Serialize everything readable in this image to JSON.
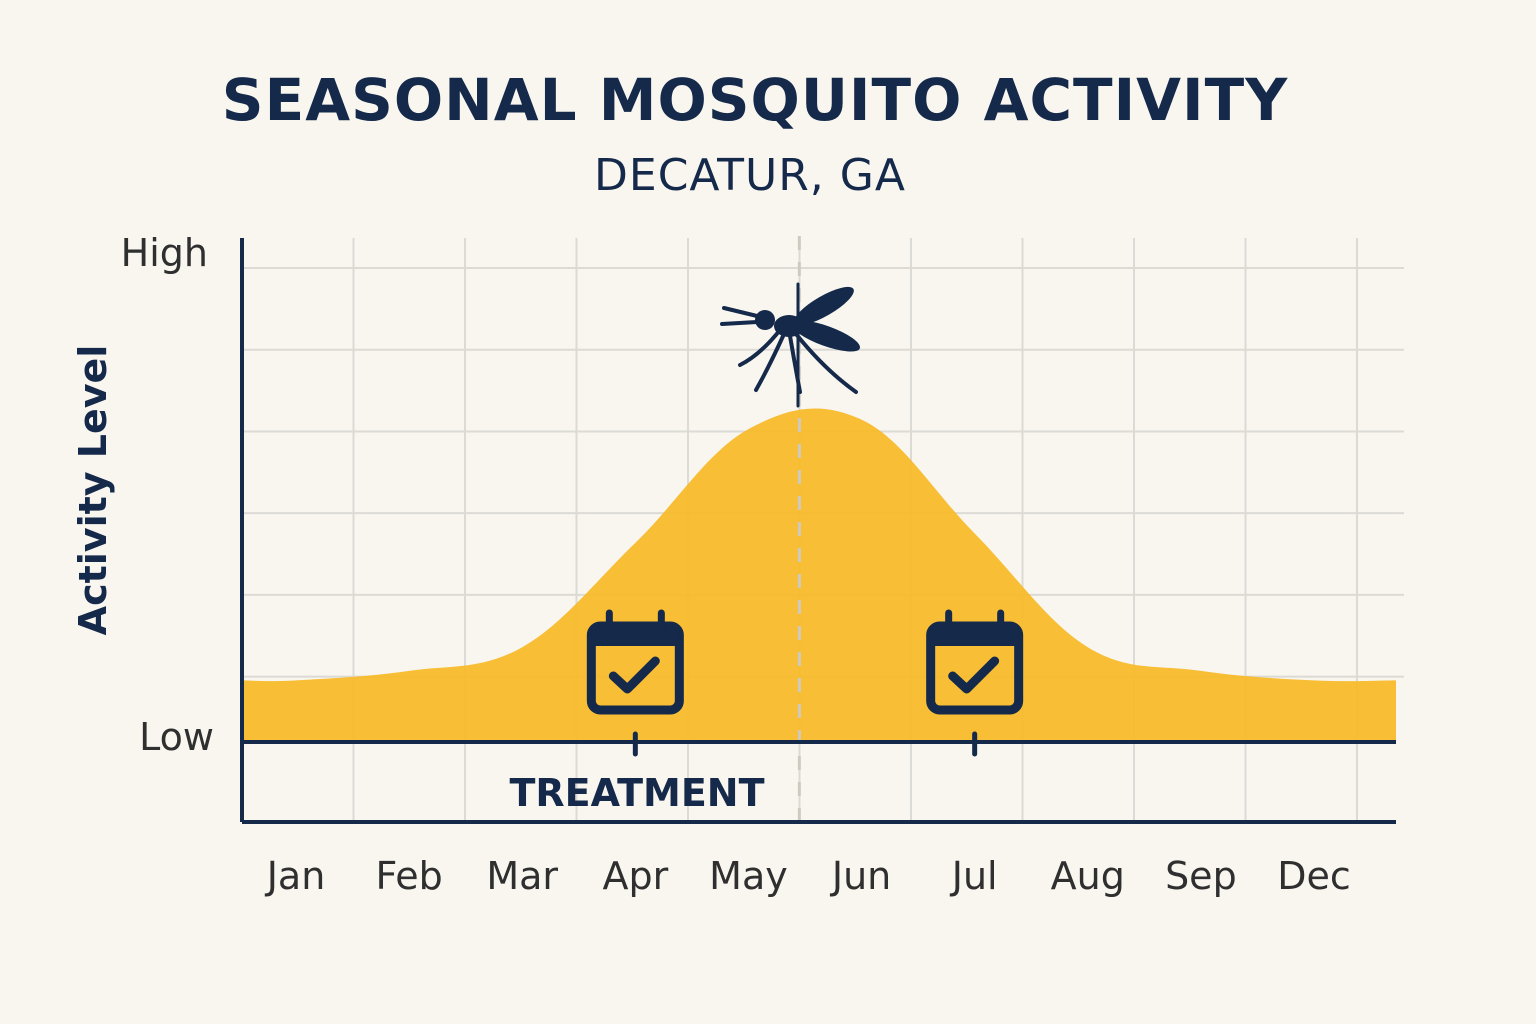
{
  "chart_data": {
    "type": "area",
    "title": "SEASONAL MOSQUITO ACTIVITY",
    "subtitle": "DECATUR, GA",
    "ylabel": "Activity Level",
    "yticks": [
      "High",
      "Low"
    ],
    "ylim": [
      0,
      1
    ],
    "grid": true,
    "categories": [
      "Jan",
      "Feb",
      "Mar",
      "Apr",
      "May",
      "Jun",
      "Jul",
      "Aug",
      "Sep",
      "Dec"
    ],
    "series": [
      {
        "values": [
          0.13,
          0.15,
          0.2,
          0.42,
          0.66,
          0.68,
          0.44,
          0.2,
          0.15,
          0.13
        ],
        "color": "#f7bb2b"
      }
    ],
    "peak_marker": {
      "category_position": 4.45,
      "icon": "mosquito-icon"
    },
    "treatment": {
      "label": "TREATMENT",
      "markers": [
        {
          "category": "Apr",
          "icon": "calendar-check-icon"
        },
        {
          "category": "Jul",
          "icon": "calendar-check-icon"
        }
      ]
    },
    "colors": {
      "fill": "#f7bb2b",
      "navy": "#15294a",
      "grid": "#dcdad5",
      "background": "#f9f6f0"
    }
  }
}
